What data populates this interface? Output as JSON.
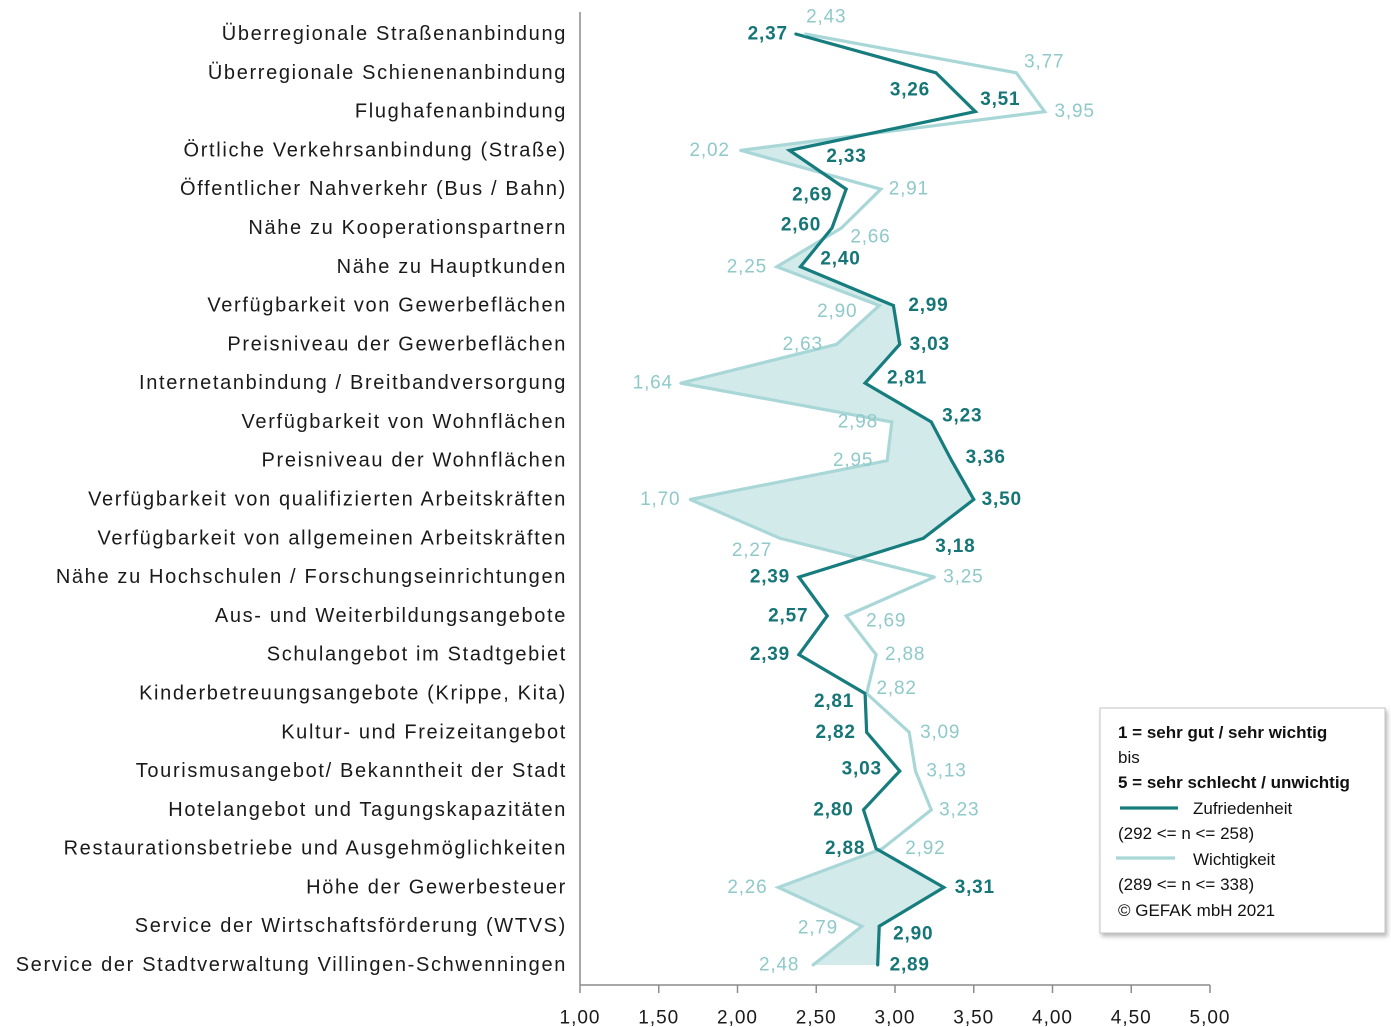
{
  "chart_data": {
    "type": "line",
    "categories": [
      "Überregionale Straßenanbindung",
      "Überregionale Schienenanbindung",
      "Flughafenanbindung",
      "Örtliche Verkehrsanbindung (Straße)",
      "Öffentlicher Nahverkehr (Bus / Bahn)",
      "Nähe zu Kooperationspartnern",
      "Nähe zu Hauptkunden",
      "Verfügbarkeit von Gewerbeflächen",
      "Preisniveau der Gewerbeflächen",
      "Internetanbindung / Breitbandversorgung",
      "Verfügbarkeit von Wohnflächen",
      "Preisniveau der Wohnflächen",
      "Verfügbarkeit von qualifizierten Arbeitskräften",
      "Verfügbarkeit von allgemeinen Arbeitskräften",
      "Nähe zu Hochschulen / Forschungseinrichtungen",
      "Aus- und Weiterbildungsangebote",
      "Schulangebot im Stadtgebiet",
      "Kinderbetreuungsangebote (Krippe, Kita)",
      "Kultur- und Freizeitangebot",
      "Tourismusangebot/ Bekanntheit der Stadt",
      "Hotelangebot und Tagungskapazitäten",
      "Restaurationsbetriebe und Ausgehmöglichkeiten",
      "Höhe der Gewerbesteuer",
      "Service der Wirtschaftsförderung (WTVS)",
      "Service der Stadtverwaltung Villingen-Schwenningen"
    ],
    "series": [
      {
        "name": "Zufriedenheit",
        "color": "#167c7e",
        "label_color": "#157577",
        "values": [
          2.37,
          3.26,
          3.51,
          2.33,
          2.69,
          2.6,
          2.4,
          2.99,
          3.03,
          2.81,
          3.23,
          3.36,
          3.5,
          3.18,
          2.39,
          2.57,
          2.39,
          2.81,
          2.82,
          3.03,
          2.8,
          2.88,
          3.31,
          2.9,
          2.89
        ],
        "value_labels": [
          "2,37",
          "3,26",
          "3,51",
          "2,33",
          "2,69",
          "2,60",
          "2,40",
          "2,99",
          "3,03",
          "2,81",
          "3,23",
          "3,36",
          "3,50",
          "3,18",
          "2,39",
          "2,57",
          "2,39",
          "2,81",
          "2,82",
          "3,03",
          "2,80",
          "2,88",
          "3,31",
          "2,90",
          "2,89"
        ]
      },
      {
        "name": "Wichtigkeit",
        "color": "#a9d7d8",
        "label_color": "#8fc9ca",
        "values": [
          2.43,
          3.77,
          3.95,
          2.02,
          2.91,
          2.66,
          2.25,
          2.9,
          2.63,
          1.64,
          2.98,
          2.95,
          1.7,
          2.27,
          3.25,
          2.69,
          2.88,
          2.82,
          3.09,
          3.13,
          3.23,
          2.92,
          2.26,
          2.79,
          2.48
        ],
        "value_labels": [
          "2,43",
          "3,77",
          "3,95",
          "2,02",
          "2,91",
          "2,66",
          "2,25",
          "2,90",
          "2,63",
          "1,64",
          "2,98",
          "2,95",
          "1,70",
          "2,27",
          "3,25",
          "2,69",
          "2,88",
          "2,82",
          "3,09",
          "3,13",
          "3,23",
          "2,92",
          "2,26",
          "2,79",
          "2,48"
        ]
      }
    ],
    "xlim": [
      1,
      5
    ],
    "x_ticks": [
      "1,00",
      "1,50",
      "2,00",
      "2,50",
      "3,00",
      "3,50",
      "4,00",
      "4,50",
      "5,00"
    ],
    "fill_color": "#d3eaea",
    "axis_color": "#8c8c8c",
    "grid": false,
    "legend_position": "bottom-right"
  },
  "legend": {
    "scale_top": "1 = sehr gut / sehr wichtig",
    "scale_mid": "bis",
    "scale_bottom": "5 = sehr schlecht / unwichtig",
    "item_satisfaction": "Zufriedenheit",
    "note_satisfaction": "(292 <= n <= 258)",
    "item_importance": "Wichtigkeit",
    "note_importance": "(289 <= n <= 338)",
    "copyright": "© GEFAK mbH 2021"
  }
}
